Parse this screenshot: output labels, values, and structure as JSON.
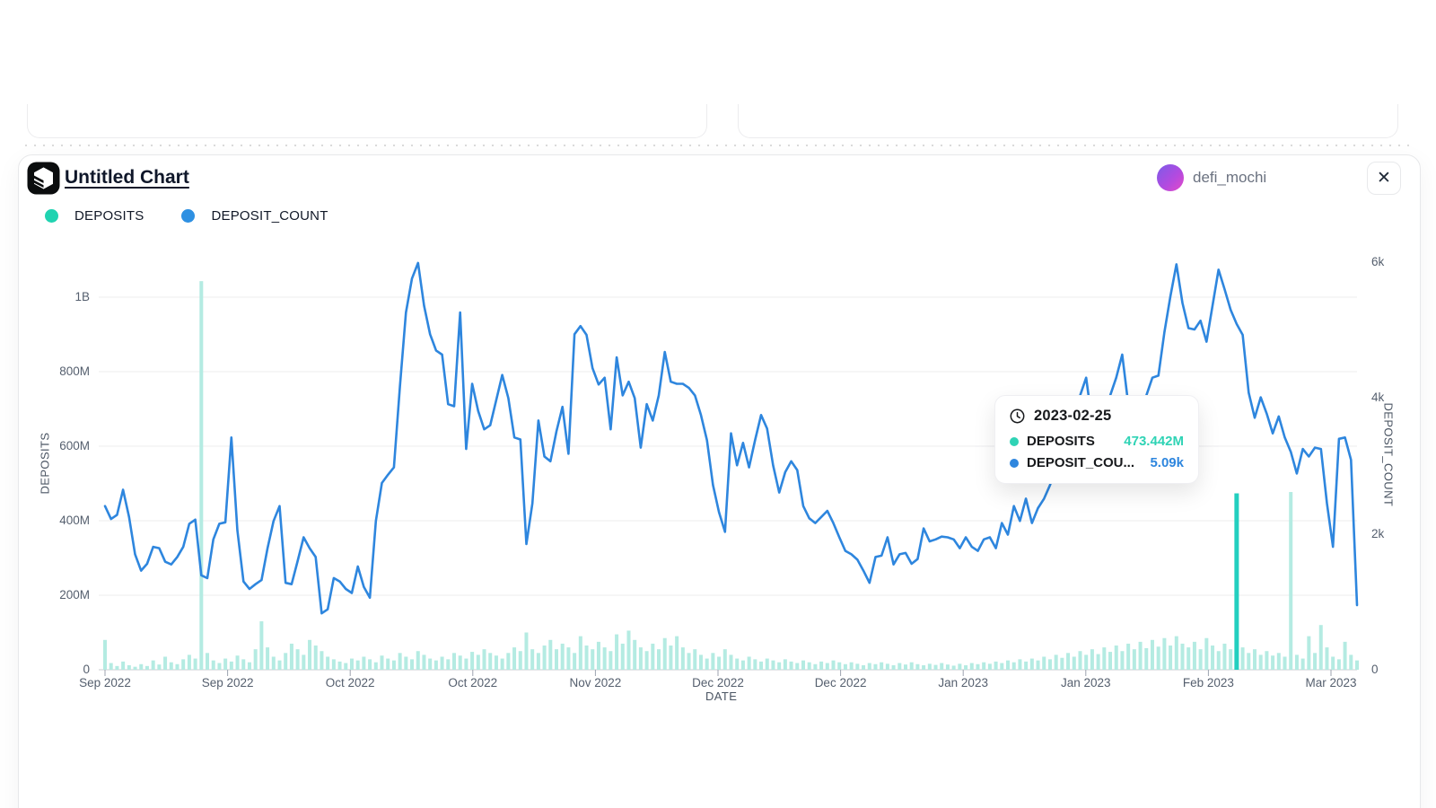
{
  "header": {
    "title": "Untitled Chart",
    "username": "defi_mochi",
    "close_label": "✕"
  },
  "legend": {
    "items": [
      {
        "label": "DEPOSITS",
        "color": "#20d3b1"
      },
      {
        "label": "DEPOSIT_COUNT",
        "color": "#2e90e2"
      }
    ]
  },
  "tooltip": {
    "date": "2023-02-25",
    "rows": [
      {
        "label": "DEPOSITS",
        "value": "473.442M",
        "color": "#2fd3b5"
      },
      {
        "label": "DEPOSIT_COU...",
        "value": "5.09k",
        "color": "#2e86de"
      }
    ]
  },
  "chart_data": {
    "type": "combo",
    "title": "Untitled Chart",
    "xlabel": "DATE",
    "highlight_date": "2023-02-25",
    "highlight_index": 188,
    "x_axis": {
      "label": "DATE",
      "tick_labels": [
        "Sep 2022",
        "Sep 2022",
        "Oct 2022",
        "Oct 2022",
        "Nov 2022",
        "Dec 2022",
        "Dec 2022",
        "Jan 2023",
        "Jan 2023",
        "Feb 2023",
        "Mar 2023"
      ]
    },
    "y_left": {
      "label": "DEPOSITS",
      "tick_labels": [
        "0",
        "200M",
        "400M",
        "600M",
        "800M",
        "1B"
      ],
      "units": "deposits (M = millions)",
      "range_m": [
        0,
        1120
      ]
    },
    "y_right": {
      "label": "DEPOSIT_COUNT",
      "tick_labels": [
        "0",
        "2k",
        "4k",
        "6k"
      ],
      "units": "count (k = thousands)",
      "range_k": [
        0,
        6.16
      ]
    },
    "series": [
      {
        "name": "DEPOSITS",
        "type": "bar",
        "axis": "left",
        "unit": "M",
        "color": "#b4ebe2",
        "highlight_color": "#23cfbf",
        "values_m": [
          80,
          18,
          10,
          22,
          12,
          8,
          15,
          10,
          25,
          14,
          35,
          20,
          15,
          28,
          40,
          30,
          1043,
          45,
          25,
          18,
          30,
          22,
          38,
          28,
          20,
          55,
          130,
          60,
          35,
          25,
          45,
          70,
          55,
          40,
          80,
          65,
          50,
          35,
          28,
          22,
          18,
          30,
          25,
          35,
          28,
          20,
          38,
          30,
          25,
          45,
          35,
          28,
          50,
          40,
          30,
          25,
          35,
          28,
          45,
          38,
          30,
          48,
          40,
          55,
          45,
          38,
          30,
          45,
          60,
          50,
          100,
          55,
          45,
          65,
          80,
          55,
          70,
          60,
          45,
          90,
          65,
          55,
          75,
          60,
          50,
          95,
          70,
          105,
          80,
          60,
          50,
          70,
          55,
          85,
          65,
          90,
          60,
          45,
          55,
          40,
          30,
          45,
          35,
          55,
          40,
          30,
          25,
          35,
          28,
          22,
          30,
          25,
          20,
          28,
          22,
          18,
          25,
          20,
          15,
          22,
          18,
          25,
          20,
          15,
          20,
          16,
          12,
          18,
          15,
          20,
          16,
          12,
          18,
          14,
          20,
          15,
          12,
          16,
          13,
          18,
          14,
          11,
          16,
          12,
          18,
          15,
          20,
          16,
          22,
          18,
          25,
          20,
          28,
          22,
          30,
          25,
          35,
          28,
          40,
          32,
          45,
          35,
          50,
          40,
          55,
          42,
          60,
          48,
          65,
          50,
          70,
          55,
          75,
          58,
          80,
          62,
          85,
          65,
          90,
          70,
          60,
          75,
          55,
          85,
          65,
          50,
          70,
          55,
          473.442,
          60,
          45,
          55,
          40,
          50,
          38,
          45,
          35,
          477,
          40,
          30,
          90,
          45,
          120,
          60,
          35,
          28,
          75,
          40,
          25
        ]
      },
      {
        "name": "DEPOSIT_COUNT",
        "type": "line",
        "axis": "right",
        "unit": "k",
        "color": "#2e86de",
        "values_k": [
          2.41,
          2.22,
          2.28,
          2.65,
          2.25,
          1.7,
          1.46,
          1.56,
          1.81,
          1.79,
          1.59,
          1.55,
          1.66,
          1.81,
          2.15,
          2.21,
          1.39,
          1.35,
          1.92,
          2.15,
          2.17,
          3.42,
          2.05,
          1.3,
          1.19,
          1.26,
          1.32,
          1.79,
          2.19,
          2.41,
          1.28,
          1.26,
          1.6,
          1.95,
          1.79,
          1.66,
          0.83,
          0.89,
          1.35,
          1.3,
          1.19,
          1.13,
          1.52,
          1.22,
          1.06,
          2.19,
          2.75,
          2.87,
          2.98,
          4.17,
          5.26,
          5.76,
          5.99,
          5.36,
          4.94,
          4.7,
          4.64,
          3.91,
          3.88,
          5.26,
          3.25,
          4.21,
          3.81,
          3.54,
          3.6,
          3.97,
          4.34,
          4.0,
          3.42,
          3.39,
          1.85,
          2.45,
          3.67,
          3.14,
          3.07,
          3.51,
          3.87,
          3.18,
          4.94,
          5.06,
          4.93,
          4.44,
          4.2,
          4.3,
          3.54,
          4.6,
          4.04,
          4.24,
          4.0,
          3.27,
          3.91,
          3.67,
          4.04,
          4.68,
          4.24,
          4.21,
          4.21,
          4.15,
          4.04,
          3.75,
          3.38,
          2.72,
          2.32,
          2.03,
          3.48,
          3.01,
          3.34,
          2.98,
          3.38,
          3.75,
          3.55,
          3.01,
          2.61,
          2.91,
          3.07,
          2.94,
          2.41,
          2.23,
          2.16,
          2.25,
          2.34,
          2.16,
          1.95,
          1.75,
          1.7,
          1.62,
          1.46,
          1.28,
          1.66,
          1.68,
          1.95,
          1.55,
          1.7,
          1.72,
          1.56,
          1.63,
          2.08,
          1.89,
          1.92,
          1.96,
          1.95,
          1.92,
          1.79,
          1.95,
          1.81,
          1.75,
          1.92,
          1.95,
          1.79,
          2.16,
          1.99,
          2.41,
          2.19,
          2.52,
          2.16,
          2.38,
          2.52,
          2.72,
          2.98,
          3.25,
          3.51,
          3.77,
          4.04,
          4.3,
          3.64,
          3.38,
          3.64,
          4.04,
          4.3,
          4.64,
          3.91,
          3.51,
          3.77,
          4.04,
          4.3,
          4.33,
          4.97,
          5.5,
          5.97,
          5.4,
          5.03,
          5.01,
          5.14,
          4.83,
          5.36,
          5.89,
          5.6,
          5.3,
          5.09,
          4.93,
          4.08,
          3.71,
          4.01,
          3.77,
          3.48,
          3.73,
          3.42,
          3.21,
          2.89,
          3.25,
          3.14,
          3.27,
          3.25,
          2.45,
          1.81,
          3.4,
          3.42,
          3.09,
          0.95
        ]
      }
    ]
  }
}
